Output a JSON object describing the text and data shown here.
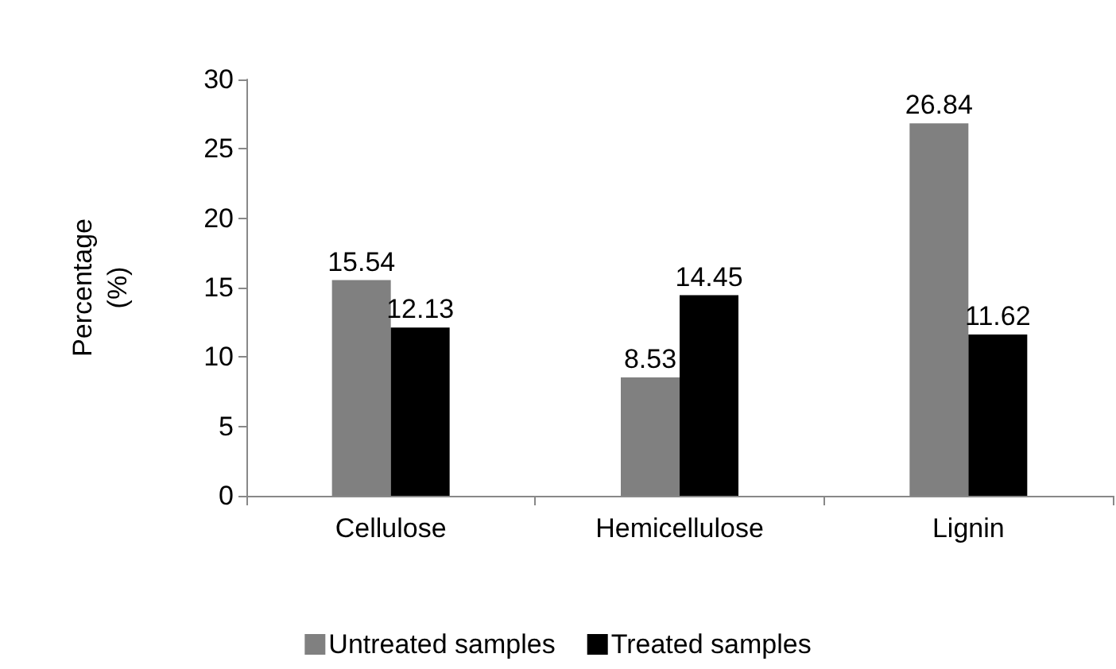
{
  "chart_data": {
    "type": "bar",
    "ylabel": "Percentage (%)",
    "categories": [
      "Cellulose",
      "Hemicellulose",
      "Lignin"
    ],
    "series": [
      {
        "name": "Untreated samples",
        "color": "#808080",
        "values": [
          15.54,
          8.53,
          26.84
        ]
      },
      {
        "name": "Treated samples",
        "color": "#000000",
        "values": [
          12.13,
          14.45,
          11.62
        ]
      }
    ],
    "ylim": [
      0,
      30
    ],
    "yticks": [
      0,
      5,
      10,
      15,
      20,
      25,
      30
    ],
    "data_labels": true,
    "grid": false,
    "legend": "bottom"
  }
}
